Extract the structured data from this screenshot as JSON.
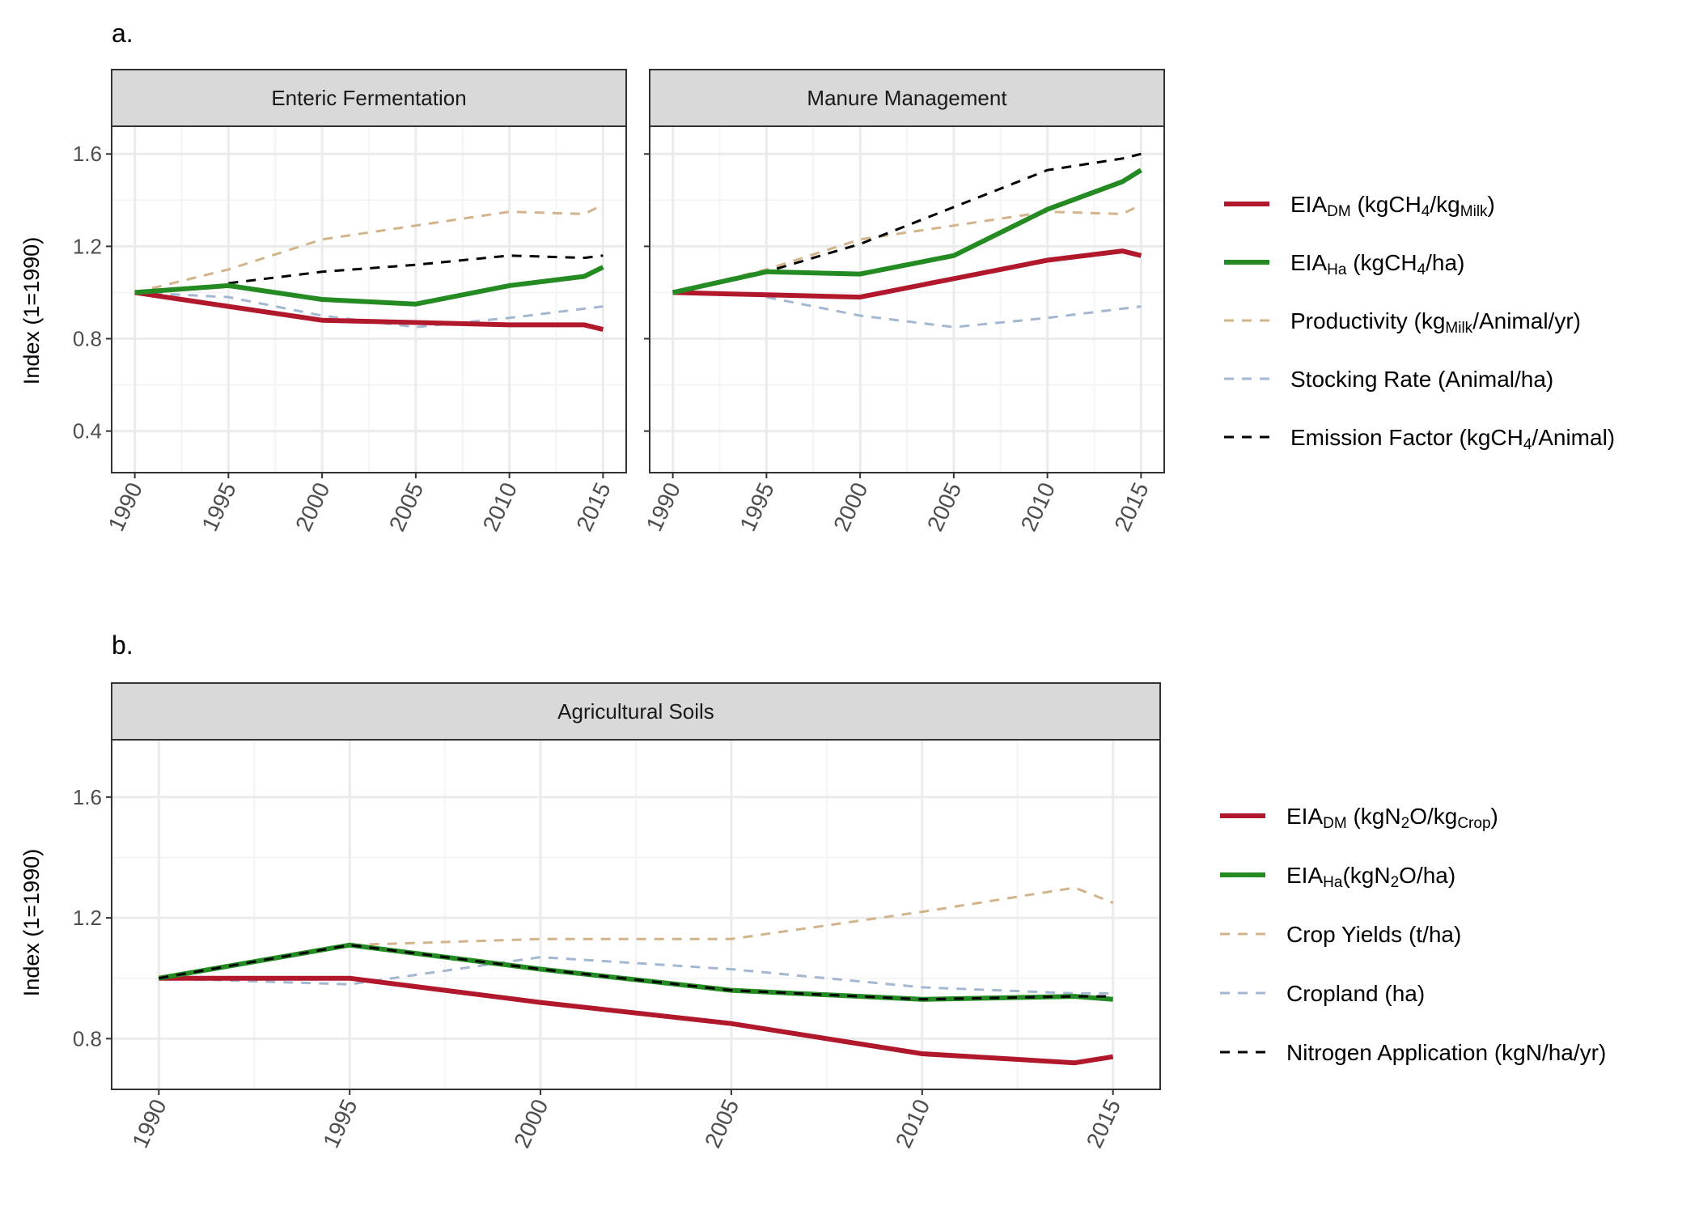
{
  "colors": {
    "eia_dm": "#B2182B",
    "eia_ha": "#238B22",
    "productivity": "#D2B48C",
    "stocking": "#A3B8D0",
    "emission": "#000000",
    "strip_bg": "#D9D9D9",
    "grid_major": "#EBEBEB",
    "grid_minor": "#F4F4F4"
  },
  "panel_a": {
    "label": "a.",
    "ylabel": "Index (1=1990)",
    "legend": [
      {
        "base": "EIA",
        "sub": "DM",
        "text": " (kgCH",
        "sub2": "4",
        "text2": "/kg",
        "sub3": "Milk",
        "text3": ")",
        "color": "eia_dm",
        "dash": false,
        "bold": true
      },
      {
        "base": "EIA",
        "sub": "Ha",
        "text": " (kgCH",
        "sub2": "4",
        "text2": "/ha)",
        "sub3": "",
        "text3": "",
        "color": "eia_ha",
        "dash": false,
        "bold": true
      },
      {
        "base": "Productivity (kg",
        "sub": "Milk",
        "text": "/Animal/yr)",
        "sub2": "",
        "text2": "",
        "sub3": "",
        "text3": "",
        "color": "productivity",
        "dash": true,
        "bold": false
      },
      {
        "base": "Stocking Rate (Animal/ha)",
        "sub": "",
        "text": "",
        "sub2": "",
        "text2": "",
        "sub3": "",
        "text3": "",
        "color": "stocking",
        "dash": true,
        "bold": false
      },
      {
        "base": "Emission Factor (kgCH",
        "sub": "4",
        "text": "/Animal)",
        "sub2": "",
        "text2": "",
        "sub3": "",
        "text3": "",
        "color": "emission",
        "dash": true,
        "bold": false
      }
    ]
  },
  "panel_b": {
    "label": "b.",
    "ylabel": "Index (1=1990)",
    "legend": [
      {
        "base": "EIA",
        "sub": "DM",
        "text": " (kgN",
        "sub2": "2",
        "text2": "O/kg",
        "sub3": "Crop",
        "text3": ")",
        "color": "eia_dm",
        "dash": false,
        "bold": true
      },
      {
        "base": "EIA",
        "sub": "Ha",
        "text": "(kgN",
        "sub2": "2",
        "text2": "O/ha)",
        "sub3": "",
        "text3": "",
        "color": "eia_ha",
        "dash": false,
        "bold": true
      },
      {
        "base": "Crop Yields (t/ha)",
        "sub": "",
        "text": "",
        "sub2": "",
        "text2": "",
        "sub3": "",
        "text3": "",
        "color": "productivity",
        "dash": true,
        "bold": false
      },
      {
        "base": "Cropland (ha)",
        "sub": "",
        "text": "",
        "sub2": "",
        "text2": "",
        "sub3": "",
        "text3": "",
        "color": "stocking",
        "dash": true,
        "bold": false
      },
      {
        "base": "Nitrogen Application (kgN/ha/yr)",
        "sub": "",
        "text": "",
        "sub2": "",
        "text2": "",
        "sub3": "",
        "text3": "",
        "color": "emission",
        "dash": true,
        "bold": false
      }
    ]
  },
  "chart_data": [
    {
      "type": "line",
      "title": "Enteric Fermentation",
      "ylabel": "Index (1=1990)",
      "xlim": [
        1990,
        2015
      ],
      "ylim": [
        0.22,
        1.72
      ],
      "yticks": [
        0.4,
        0.8,
        1.2,
        1.6
      ],
      "xticks": [
        1990,
        1995,
        2000,
        2005,
        2010,
        2015
      ],
      "series": [
        {
          "key": "productivity",
          "x": [
            1990,
            1995,
            2000,
            2005,
            2010,
            2014,
            2015
          ],
          "values": [
            1.0,
            1.1,
            1.23,
            1.29,
            1.35,
            1.34,
            1.38
          ]
        },
        {
          "key": "stocking",
          "x": [
            1990,
            1995,
            2000,
            2005,
            2010,
            2014,
            2015
          ],
          "values": [
            1.0,
            0.98,
            0.9,
            0.85,
            0.89,
            0.93,
            0.94
          ]
        },
        {
          "key": "emission",
          "x": [
            1995,
            2000,
            2005,
            2010,
            2014,
            2015
          ],
          "values": [
            1.04,
            1.09,
            1.12,
            1.16,
            1.15,
            1.16
          ]
        },
        {
          "key": "eia_dm",
          "x": [
            1990,
            1995,
            2000,
            2005,
            2010,
            2014,
            2015
          ],
          "values": [
            1.0,
            0.94,
            0.88,
            0.87,
            0.86,
            0.86,
            0.84
          ]
        },
        {
          "key": "eia_ha",
          "x": [
            1990,
            1995,
            2000,
            2005,
            2010,
            2014,
            2015
          ],
          "values": [
            1.0,
            1.03,
            0.97,
            0.95,
            1.03,
            1.07,
            1.11
          ]
        }
      ]
    },
    {
      "type": "line",
      "title": "Manure Management",
      "ylabel": "Index (1=1990)",
      "xlim": [
        1990,
        2015
      ],
      "ylim": [
        0.22,
        1.72
      ],
      "yticks": [
        0.4,
        0.8,
        1.2,
        1.6
      ],
      "xticks": [
        1990,
        1995,
        2000,
        2005,
        2010,
        2015
      ],
      "series": [
        {
          "key": "productivity",
          "x": [
            1990,
            1995,
            2000,
            2005,
            2010,
            2014,
            2015
          ],
          "values": [
            1.0,
            1.1,
            1.23,
            1.29,
            1.35,
            1.34,
            1.38
          ]
        },
        {
          "key": "stocking",
          "x": [
            1995,
            2000,
            2005,
            2010,
            2014,
            2015
          ],
          "values": [
            0.98,
            0.9,
            0.85,
            0.89,
            0.93,
            0.94
          ]
        },
        {
          "key": "emission",
          "x": [
            1990,
            1995,
            2000,
            2005,
            2010,
            2014,
            2015
          ],
          "values": [
            1.0,
            1.09,
            1.21,
            1.37,
            1.53,
            1.58,
            1.6
          ]
        },
        {
          "key": "eia_dm",
          "x": [
            1990,
            1995,
            2000,
            2005,
            2010,
            2014,
            2015
          ],
          "values": [
            1.0,
            0.99,
            0.98,
            1.06,
            1.14,
            1.18,
            1.16
          ]
        },
        {
          "key": "eia_ha",
          "x": [
            1990,
            1995,
            2000,
            2005,
            2010,
            2014,
            2015
          ],
          "values": [
            1.0,
            1.09,
            1.08,
            1.16,
            1.36,
            1.48,
            1.53
          ]
        }
      ]
    },
    {
      "type": "line",
      "title": "Agricultural Soils",
      "ylabel": "Index (1=1990)",
      "xlim": [
        1990,
        2015
      ],
      "ylim": [
        0.632,
        1.79
      ],
      "yticks": [
        0.8,
        1.2,
        1.6
      ],
      "xticks": [
        1990,
        1995,
        2000,
        2005,
        2010,
        2015
      ],
      "series": [
        {
          "key": "productivity",
          "x": [
            1990,
            1995,
            2000,
            2005,
            2010,
            2014,
            2015
          ],
          "values": [
            1.0,
            1.11,
            1.13,
            1.13,
            1.22,
            1.3,
            1.25
          ]
        },
        {
          "key": "stocking",
          "x": [
            1990,
            1995,
            2000,
            2005,
            2010,
            2014,
            2015
          ],
          "values": [
            1.0,
            0.98,
            1.07,
            1.03,
            0.97,
            0.95,
            0.95
          ]
        },
        {
          "key": "eia_dm",
          "x": [
            1990,
            1995,
            2000,
            2005,
            2010,
            2014,
            2015
          ],
          "values": [
            1.0,
            1.0,
            0.92,
            0.85,
            0.75,
            0.72,
            0.74
          ]
        },
        {
          "key": "eia_ha",
          "x": [
            1990,
            1995,
            2000,
            2005,
            2010,
            2014,
            2015
          ],
          "values": [
            1.0,
            1.11,
            1.03,
            0.96,
            0.93,
            0.94,
            0.93
          ]
        },
        {
          "key": "emission",
          "x": [
            1990,
            1995,
            2000,
            2005,
            2010,
            2014,
            2015
          ],
          "values": [
            1.0,
            1.11,
            1.03,
            0.96,
            0.93,
            0.94,
            0.94
          ]
        }
      ]
    }
  ]
}
